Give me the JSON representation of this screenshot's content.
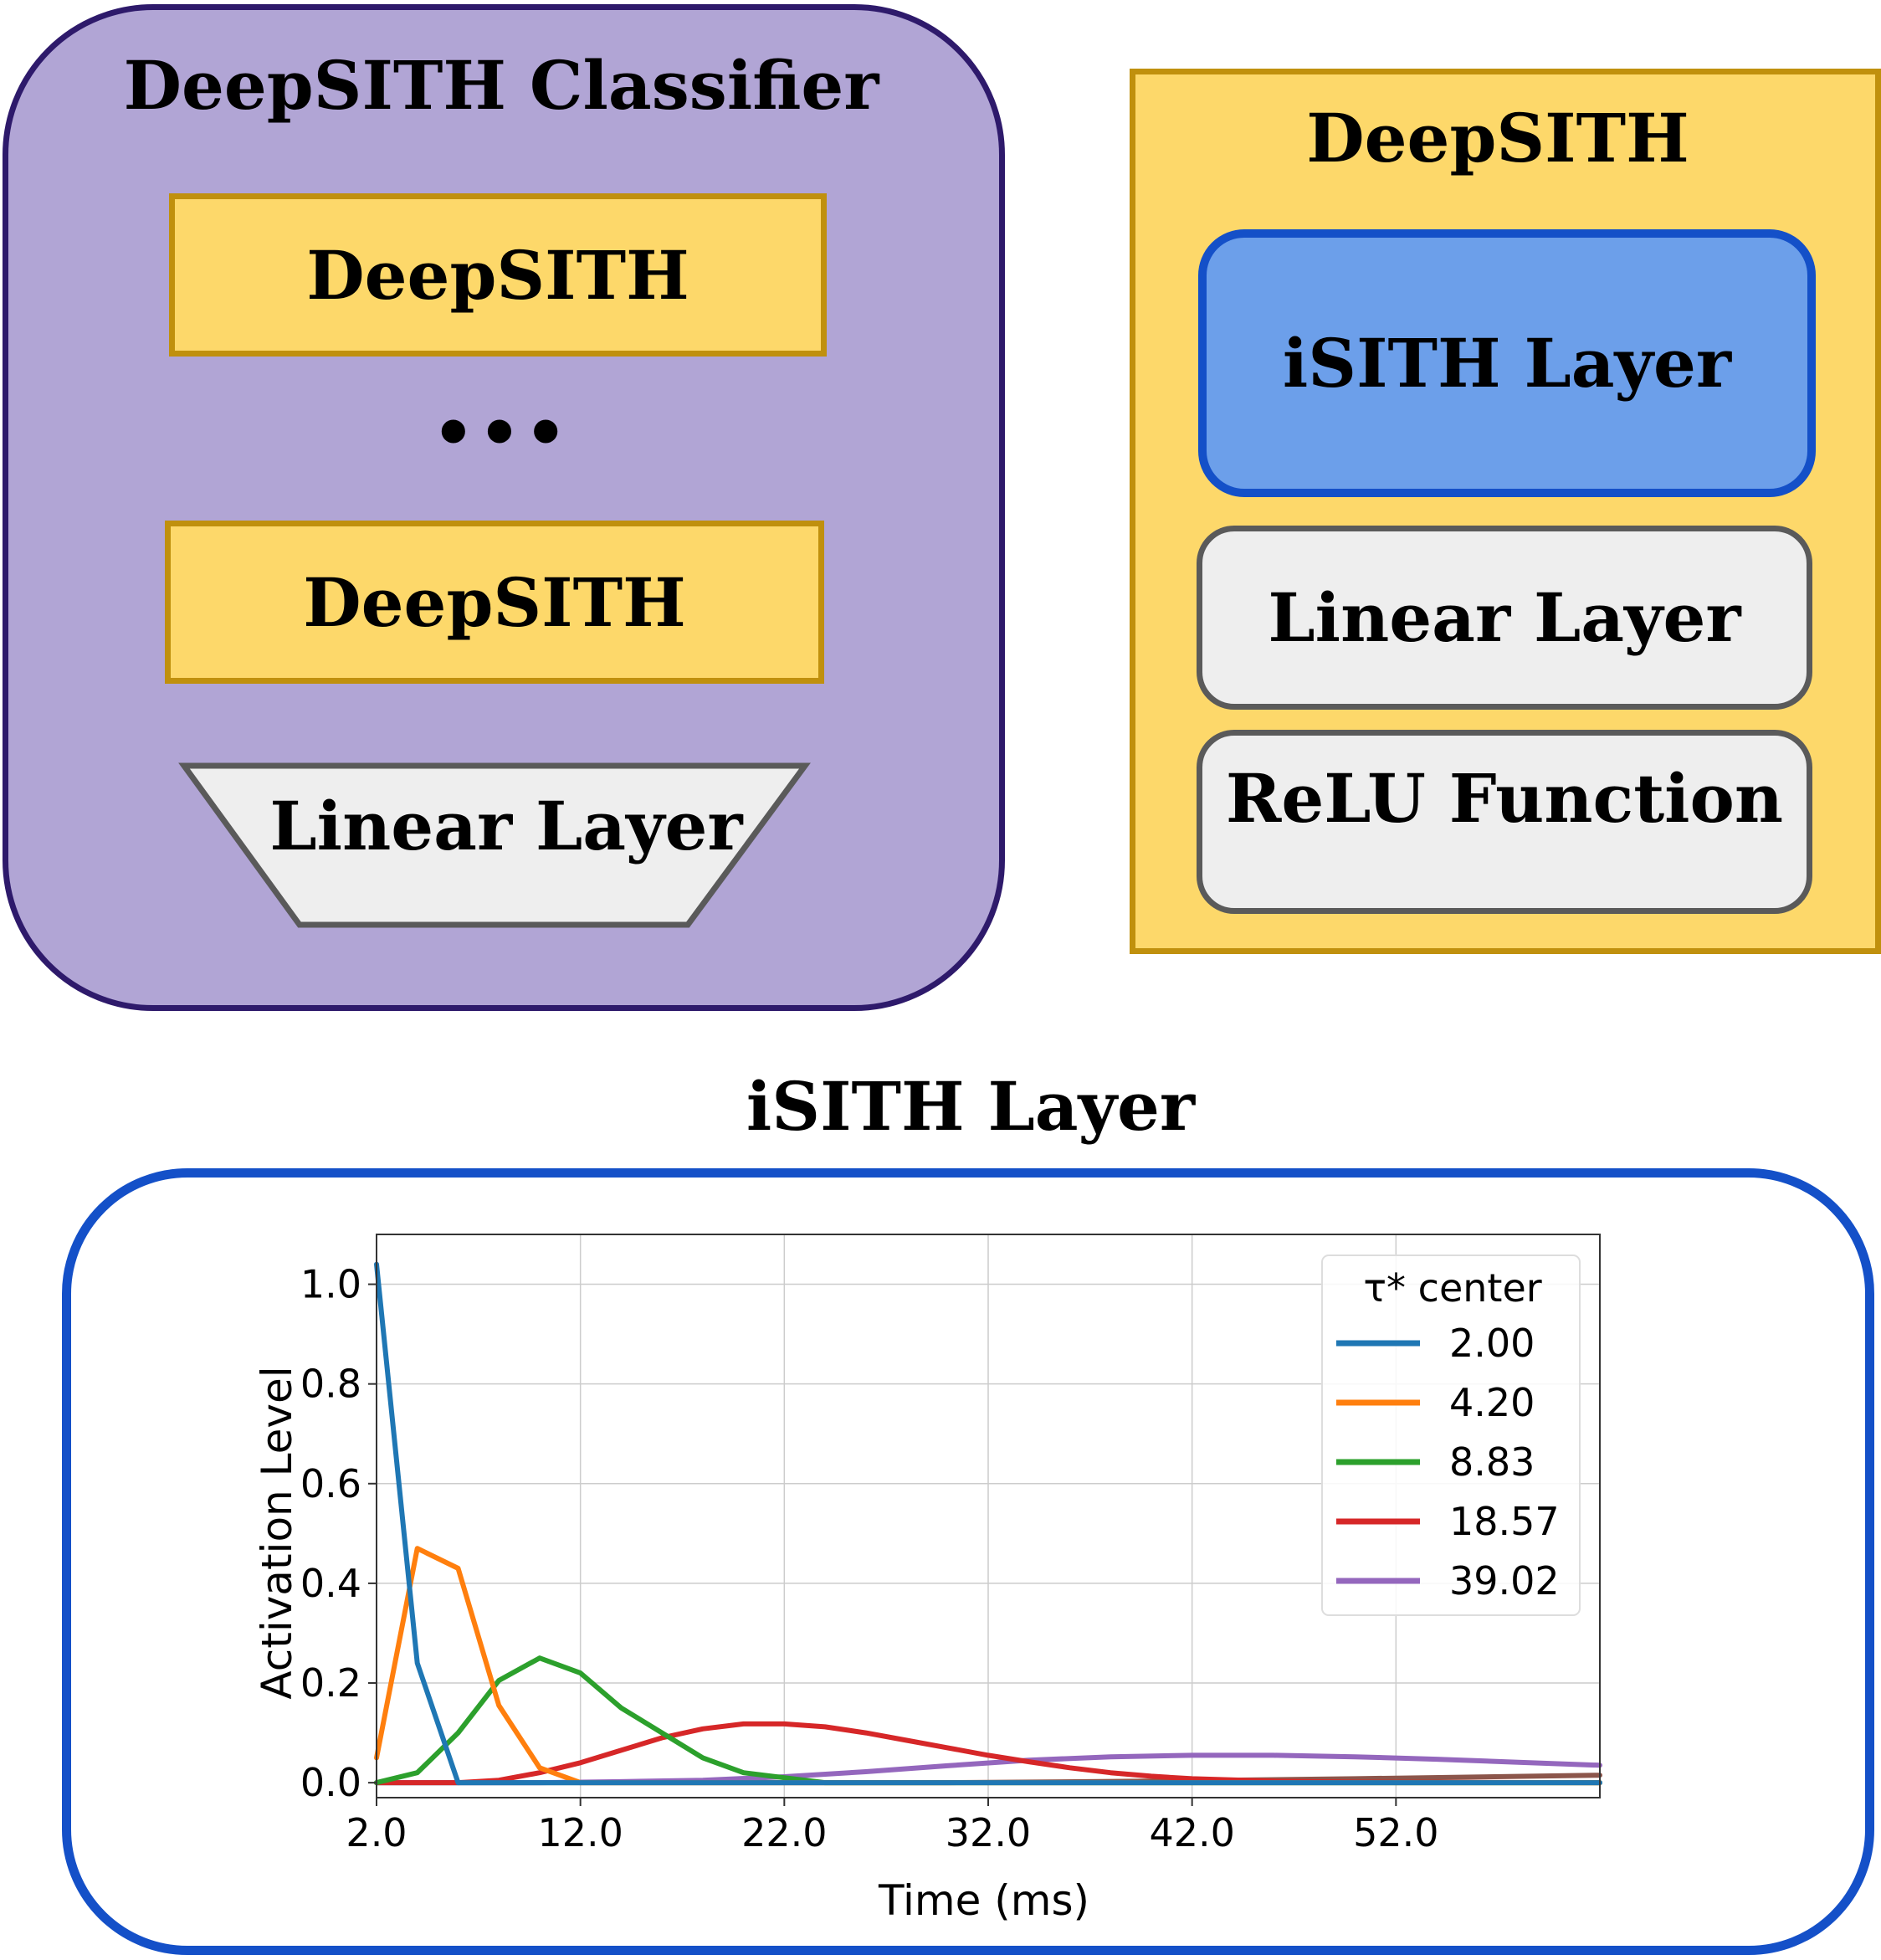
{
  "classifier": {
    "title": "DeepSITH Classifier",
    "block1": "DeepSITH",
    "ellipsis": "•••",
    "block2": "DeepSITH",
    "linear": "Linear Layer"
  },
  "deepsith": {
    "title": "DeepSITH",
    "isith": "iSITH Layer",
    "linear": "Linear Layer",
    "relu": "ReLU Function"
  },
  "isith_section": {
    "title": "iSITH Layer"
  },
  "colors": {
    "classifier_fill": "#b1a5d5",
    "classifier_border": "#2e1a6b",
    "deepsith_fill": "#fdd86a",
    "deepsith_border": "#c0900d",
    "isith_fill": "#6c9fea",
    "isith_border": "#1450c8",
    "gray_fill": "#eeeeee",
    "gray_border": "#5a5a5a"
  },
  "chart_data": {
    "type": "line",
    "xlabel": "Time (ms)",
    "ylabel": "Activation Level",
    "xlim": [
      2,
      62
    ],
    "ylim": [
      -0.03,
      1.1
    ],
    "xticks": [
      "2.0",
      "12.0",
      "22.0",
      "32.0",
      "42.0",
      "52.0"
    ],
    "yticks": [
      "0.0",
      "0.2",
      "0.4",
      "0.6",
      "0.8",
      "1.0"
    ],
    "grid": true,
    "legend_title": "τ* center",
    "legend_position": "top-right",
    "series": [
      {
        "name": "2.00",
        "color": "#1f77b4",
        "x": [
          2,
          4,
          6,
          8,
          62
        ],
        "y": [
          1.04,
          0.24,
          0.0,
          0.0,
          0.0
        ]
      },
      {
        "name": "4.20",
        "color": "#ff7f0e",
        "x": [
          2,
          4,
          6,
          8,
          10,
          12,
          14,
          62
        ],
        "y": [
          0.05,
          0.47,
          0.43,
          0.155,
          0.03,
          0.0,
          0.0,
          0.0
        ]
      },
      {
        "name": "8.83",
        "color": "#2ca02c",
        "x": [
          2,
          4,
          6,
          8,
          10,
          12,
          14,
          16,
          18,
          20,
          22,
          24,
          62
        ],
        "y": [
          0.0,
          0.02,
          0.1,
          0.205,
          0.25,
          0.22,
          0.15,
          0.1,
          0.05,
          0.02,
          0.01,
          0.0,
          0.0
        ]
      },
      {
        "name": "18.57",
        "color": "#d62728",
        "x": [
          2,
          6,
          8,
          10,
          12,
          14,
          16,
          18,
          20,
          22,
          24,
          26,
          28,
          30,
          32,
          34,
          36,
          38,
          40,
          42,
          46,
          50,
          62
        ],
        "y": [
          0.0,
          0.0,
          0.005,
          0.02,
          0.04,
          0.065,
          0.09,
          0.108,
          0.118,
          0.118,
          0.112,
          0.1,
          0.085,
          0.07,
          0.055,
          0.042,
          0.03,
          0.02,
          0.013,
          0.008,
          0.003,
          0.001,
          0.0
        ]
      },
      {
        "name": "39.02",
        "color": "#9467bd",
        "x": [
          2,
          10,
          14,
          18,
          22,
          26,
          30,
          34,
          38,
          42,
          46,
          50,
          54,
          58,
          62
        ],
        "y": [
          0.0,
          0.0,
          0.002,
          0.005,
          0.012,
          0.022,
          0.034,
          0.045,
          0.052,
          0.055,
          0.055,
          0.052,
          0.047,
          0.041,
          0.035
        ]
      },
      {
        "name": "",
        "color": "#8c564b",
        "x": [
          2,
          30,
          40,
          50,
          62
        ],
        "y": [
          0.0,
          0.0,
          0.003,
          0.008,
          0.015
        ]
      },
      {
        "name": "",
        "color": "#17becf",
        "x": [
          2,
          62
        ],
        "y": [
          0.0,
          0.0
        ]
      }
    ]
  }
}
